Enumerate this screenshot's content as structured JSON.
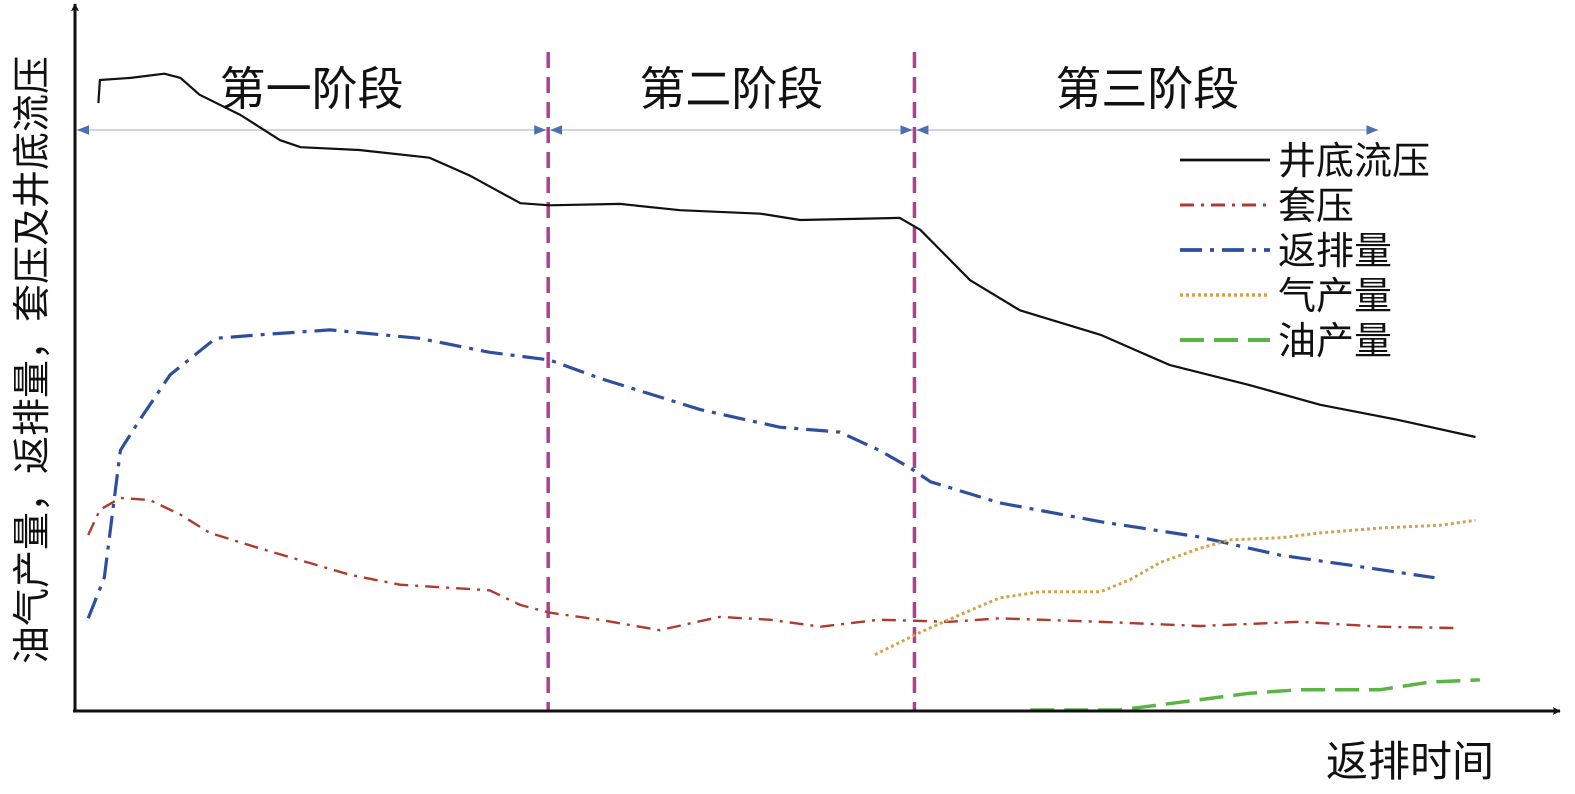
{
  "chart_data": {
    "type": "line",
    "title": "",
    "xlabel": "返排时间",
    "ylabel": "油气产量，返排量，套压及井底流压",
    "xlim": [
      0,
      100
    ],
    "ylim": [
      0,
      100
    ],
    "grid": false,
    "legend_position": "right",
    "stages": [
      {
        "label": "第一阶段",
        "start": 0,
        "end": 32.3
      },
      {
        "label": "第二阶段",
        "start": 32.3,
        "end": 57.3
      },
      {
        "label": "第三阶段",
        "start": 57.3,
        "end": 89.1
      }
    ],
    "stage_divider_color": "#b0408f",
    "stage_arrow_color": "#4a6fb5",
    "series": [
      {
        "name": "井底流压",
        "color": "#111111",
        "style": "solid",
        "x": [
          1.6,
          1.7,
          3.8,
          6.1,
          7.2,
          8.5,
          11.3,
          14,
          15.4,
          19.4,
          24.2,
          26.9,
          30.4,
          32.4,
          37.2,
          41.3,
          46.8,
          49.5,
          56.3,
          57.7,
          61.1,
          64.5,
          70,
          74.7,
          80.2,
          85,
          90.4,
          95.6
        ],
        "y": [
          86.7,
          90,
          90.3,
          90.9,
          90.3,
          87.9,
          85,
          81.4,
          80.4,
          80,
          78.9,
          76.4,
          72.4,
          72.1,
          72.3,
          71.4,
          70.9,
          70,
          70.3,
          68.6,
          61.4,
          57.1,
          53.6,
          49.3,
          46.4,
          43.6,
          41.4,
          39
        ]
      },
      {
        "name": "套压",
        "color": "#b03a2e",
        "style": "dash-dot-dot",
        "x": [
          0.9,
          1.7,
          3.1,
          5.1,
          7.2,
          9.2,
          12.6,
          18.8,
          22.2,
          28.3,
          30.4,
          32.4,
          35.8,
          39.9,
          44,
          47.4,
          50.9,
          54.9,
          59.7,
          63.1,
          70,
          76.8,
          83.6,
          89.1,
          94.5
        ],
        "y": [
          25,
          28.6,
          30.3,
          30,
          27.9,
          25.3,
          23.1,
          19.3,
          17.9,
          17.1,
          15,
          13.9,
          12.9,
          11.4,
          13.3,
          12.9,
          11.9,
          12.9,
          12.6,
          13.1,
          12.6,
          12,
          12.6,
          11.9,
          11.7
        ]
      },
      {
        "name": "返排量",
        "color": "#2e4fa0",
        "style": "dash-dot",
        "x": [
          0.9,
          2,
          3.1,
          4.4,
          6.5,
          9.6,
          12.6,
          17.4,
          23.5,
          28.3,
          32.4,
          35.8,
          42.7,
          48.1,
          52.2,
          54.9,
          57,
          58.4,
          63.1,
          70,
          76.8,
          82.3,
          87,
          92.8
        ],
        "y": [
          13.1,
          18.9,
          37.1,
          41.4,
          47.9,
          53.1,
          53.6,
          54.3,
          53.1,
          51.1,
          50,
          47.4,
          42.9,
          40.4,
          39.7,
          37.1,
          34.6,
          32.6,
          29.6,
          26.9,
          24.7,
          22.1,
          20.7,
          18.9
        ]
      },
      {
        "name": "气产量",
        "color": "#d4a24a",
        "style": "dotted",
        "x": [
          54.6,
          57.7,
          60.4,
          63.1,
          65.9,
          70,
          72,
          74.1,
          76.8,
          78.8,
          82.3,
          85,
          89.1,
          93.2,
          95.6
        ],
        "y": [
          7.9,
          11.1,
          13.6,
          16,
          16.9,
          16.9,
          18.6,
          21.1,
          23.1,
          24.3,
          24.6,
          25.3,
          26,
          26.4,
          27.1
        ]
      },
      {
        "name": "油产量",
        "color": "#5ab545",
        "style": "dashed",
        "x": [
          65.2,
          71.3,
          75.4,
          80.2,
          83.6,
          89.1,
          92.5,
          95.9
        ],
        "y": [
          0,
          0,
          1.1,
          2.4,
          2.9,
          2.9,
          4,
          4.3
        ]
      }
    ]
  }
}
